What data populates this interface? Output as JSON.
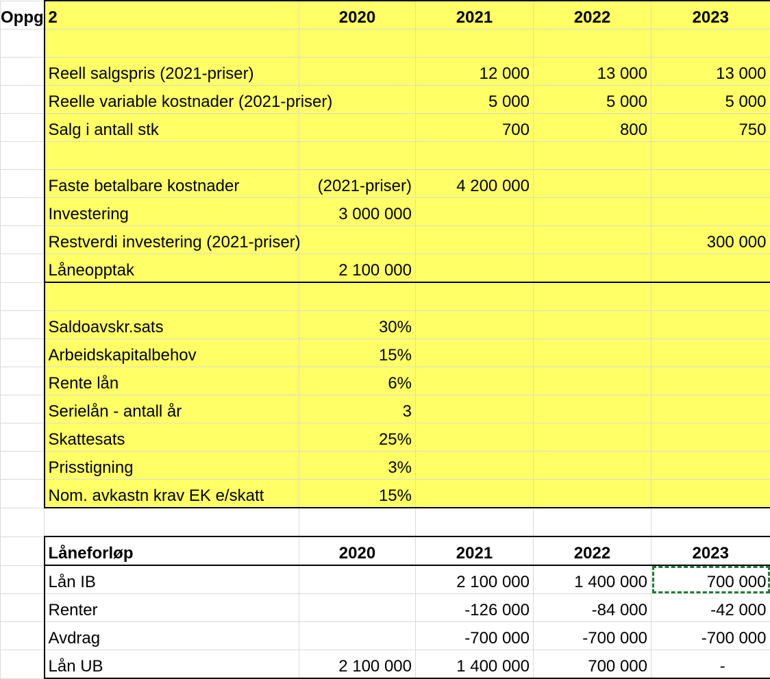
{
  "sheet": {
    "title": "Oppg 2",
    "years": [
      "2020",
      "2021",
      "2022",
      "2023"
    ],
    "rows": {
      "reell_salgspris": {
        "label": "Reell salgspris (2021-priser)",
        "v2020": "",
        "v2021": "12 000",
        "v2022": "13 000",
        "v2023": "13 000"
      },
      "reelle_var_kost": {
        "label": "Reelle variable kostnader (2021-priser)",
        "v2020": "",
        "v2021": "5 000",
        "v2022": "5 000",
        "v2023": "5 000"
      },
      "salg_antall": {
        "label": "Salg i antall stk",
        "v2020": "",
        "v2021": "700",
        "v2022": "800",
        "v2023": "750"
      },
      "faste_kost": {
        "label": "Faste betalbare kostnader",
        "v2020": "(2021-priser)",
        "v2021": "4 200 000",
        "v2022": "",
        "v2023": ""
      },
      "investering": {
        "label": "Investering",
        "v2020": "3 000 000",
        "v2021": "",
        "v2022": "",
        "v2023": ""
      },
      "restverdi": {
        "label": "Restverdi investering (2021-priser)",
        "v2020": "",
        "v2021": "",
        "v2022": "",
        "v2023": "300 000"
      },
      "laneopptak": {
        "label": "Låneopptak",
        "v2020": "2 100 000",
        "v2021": "",
        "v2022": "",
        "v2023": ""
      }
    },
    "params": [
      {
        "label": "Saldoavskr.sats",
        "value": "30%"
      },
      {
        "label": "Arbeidskapitalbehov",
        "value": "15%"
      },
      {
        "label": "Rente lån",
        "value": "6%"
      },
      {
        "label": "Serielån - antall år",
        "value": "3"
      },
      {
        "label": "Skattesats",
        "value": "25%"
      },
      {
        "label": "Prisstigning",
        "value": "3%"
      },
      {
        "label": "Nom. avkastn krav EK e/skatt",
        "value": "15%"
      }
    ],
    "loan": {
      "header": "Låneforløp",
      "rows": [
        {
          "label": "Lån IB",
          "v2020": "",
          "v2021": "2 100 000",
          "v2022": "1 400 000",
          "v2023": "700 000"
        },
        {
          "label": "Renter",
          "v2020": "",
          "v2021": "-126 000",
          "v2022": "-84 000",
          "v2023": "-42 000"
        },
        {
          "label": "Avdrag",
          "v2020": "",
          "v2021": "-700 000",
          "v2022": "-700 000",
          "v2023": "-700 000"
        },
        {
          "label": "Lån UB",
          "v2020": "2 100 000",
          "v2021": "1 400 000",
          "v2022": "700 000",
          "v2023": "-"
        }
      ]
    }
  },
  "colors": {
    "highlight": "#ffff66",
    "selection": "#1f7a3a"
  }
}
